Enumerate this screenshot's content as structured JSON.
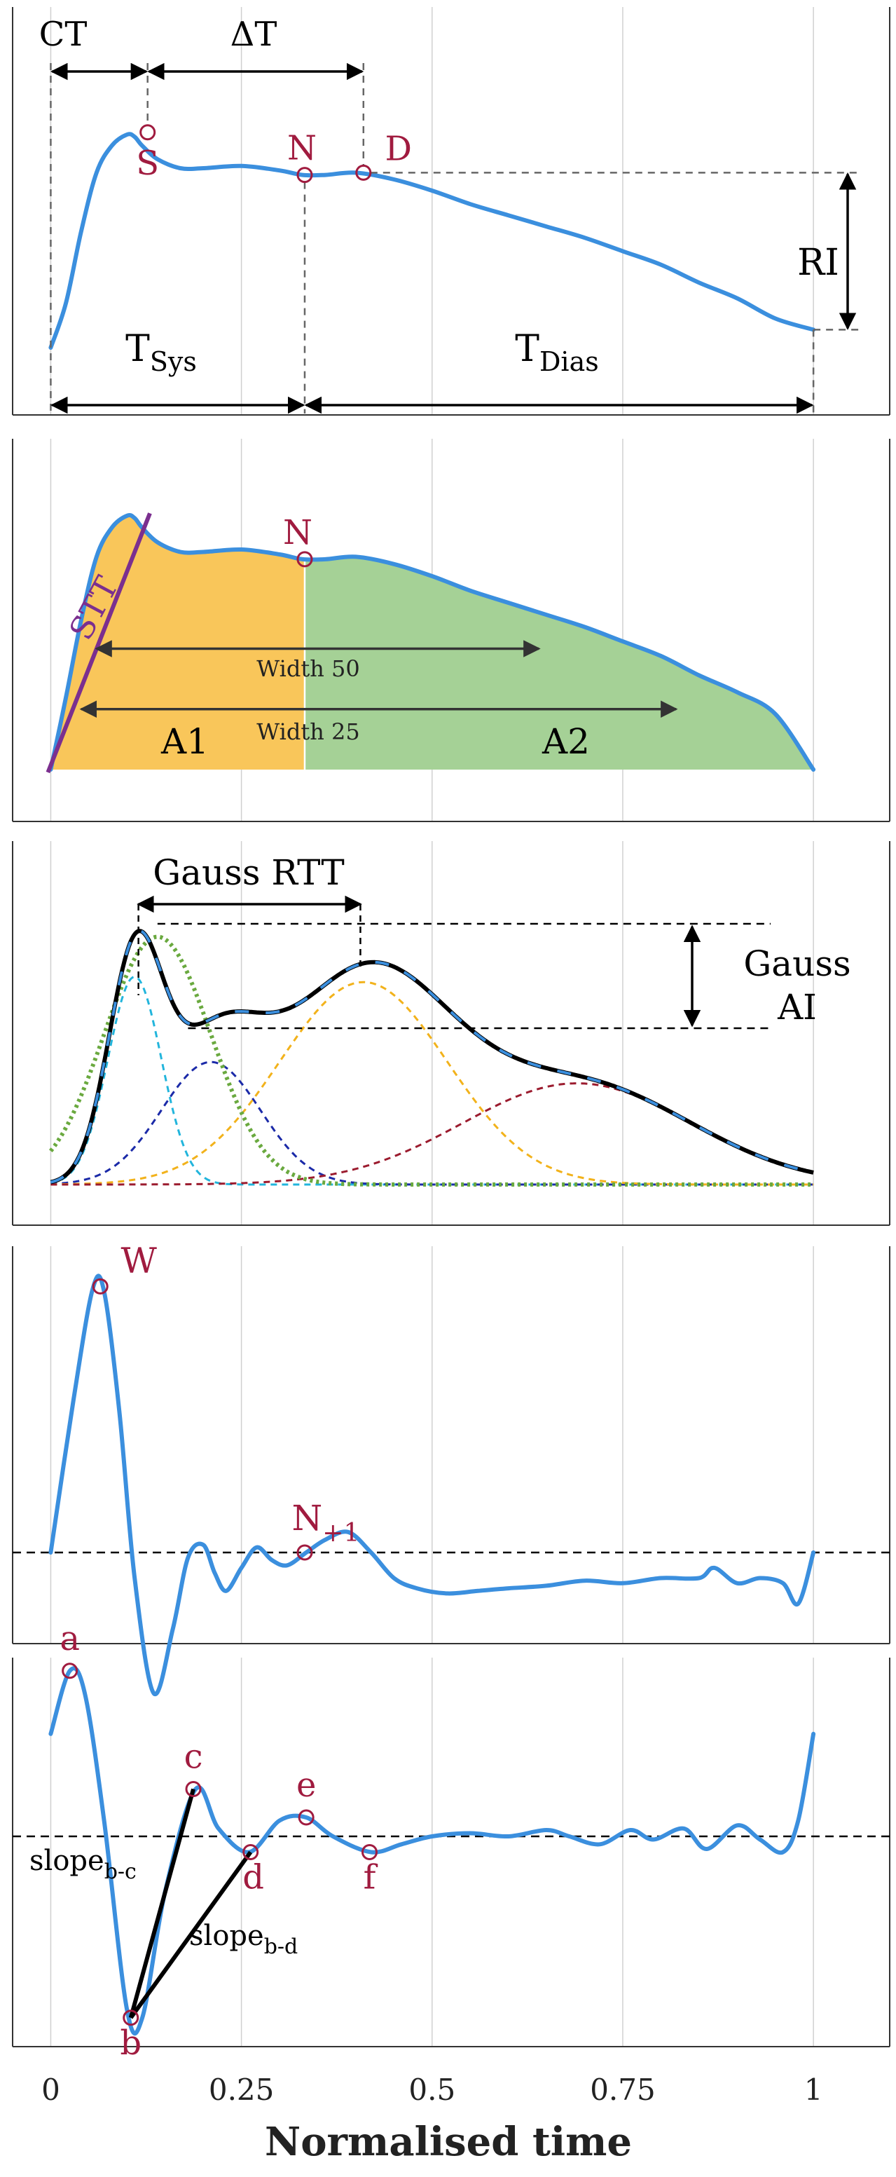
{
  "colors": {
    "signal": "#3b8fde",
    "marker": "#a01b3f",
    "guide": "#666666",
    "arrow": "#000000",
    "stt": "#7b2f8f",
    "area_systolic": "#f9c65a",
    "area_diastolic": "#a5d196",
    "gauss_sum": "#000000",
    "gauss_1": "#22b5dc",
    "gauss_2": "#1b2aa8",
    "gauss_3": "#f2b21b",
    "gauss_4": "#9b1b2e",
    "gauss_5": "#6aa93f",
    "grid": "#d0d0d0"
  },
  "x_axis": {
    "label": "Normalised time",
    "ticks": [
      "0",
      "0.25",
      "0.5",
      "0.75",
      "1"
    ],
    "tick_values": [
      0,
      0.25,
      0.5,
      0.75,
      1
    ],
    "range": [
      -0.05,
      1.1
    ],
    "grid": "vertical"
  },
  "chart_data": [
    {
      "type": "line",
      "panel": "pulse-wave-timing",
      "x": [
        0,
        0.02,
        0.04,
        0.06,
        0.08,
        0.1,
        0.11,
        0.12,
        0.14,
        0.17,
        0.2,
        0.25,
        0.3,
        0.33,
        0.36,
        0.4,
        0.45,
        0.5,
        0.55,
        0.6,
        0.65,
        0.7,
        0.75,
        0.8,
        0.85,
        0.9,
        0.95,
        1.0
      ],
      "y": [
        0.1,
        0.3,
        0.62,
        0.88,
        1.0,
        1.05,
        1.04,
        1.0,
        0.94,
        0.9,
        0.9,
        0.91,
        0.89,
        0.87,
        0.87,
        0.88,
        0.85,
        0.8,
        0.74,
        0.69,
        0.64,
        0.59,
        0.53,
        0.47,
        0.39,
        0.32,
        0.23,
        0.18
      ],
      "markers": [
        {
          "label": "S",
          "x": 0.127,
          "y": 1.06
        },
        {
          "label": "N",
          "x": 0.333,
          "y": 0.87
        },
        {
          "label": "D",
          "x": 0.41,
          "y": 0.88
        }
      ],
      "annotations": {
        "ct": "CT",
        "delta_t": "ΔT",
        "ri": "RI",
        "t": "T",
        "sys": "Sys",
        "dias": "Dias"
      }
    },
    {
      "type": "area",
      "panel": "pulse-wave-areas",
      "x": [
        0,
        0.02,
        0.04,
        0.06,
        0.08,
        0.1,
        0.11,
        0.12,
        0.14,
        0.17,
        0.2,
        0.25,
        0.3,
        0.33,
        0.36,
        0.4,
        0.45,
        0.5,
        0.55,
        0.6,
        0.65,
        0.7,
        0.75,
        0.8,
        0.85,
        0.9,
        0.95,
        1.0
      ],
      "y": [
        0.0,
        0.3,
        0.62,
        0.88,
        1.0,
        1.05,
        1.04,
        1.0,
        0.94,
        0.9,
        0.9,
        0.91,
        0.89,
        0.87,
        0.87,
        0.88,
        0.85,
        0.8,
        0.74,
        0.69,
        0.64,
        0.59,
        0.53,
        0.47,
        0.39,
        0.32,
        0.23,
        0.0
      ],
      "split_x": 0.333,
      "markers": [
        {
          "label": "N",
          "x": 0.333,
          "y": 0.87
        }
      ],
      "areas": [
        "A1",
        "A2"
      ],
      "stt": "STT",
      "widths": [
        {
          "label": "Width 50",
          "x0": 0.06,
          "x1": 0.64,
          "y": 0.5
        },
        {
          "label": "Width 25",
          "x0": 0.04,
          "x1": 0.82,
          "y": 0.25
        }
      ]
    },
    {
      "type": "line",
      "panel": "gaussian-decomposition",
      "x_range": [
        0,
        1.0
      ],
      "components": [
        {
          "color_key": "gauss_1",
          "mu": 0.11,
          "sigma": 0.035,
          "amp": 0.78
        },
        {
          "color_key": "gauss_2",
          "mu": 0.21,
          "sigma": 0.065,
          "amp": 0.46
        },
        {
          "color_key": "gauss_3",
          "mu": 0.41,
          "sigma": 0.11,
          "amp": 0.76
        },
        {
          "color_key": "gauss_4",
          "mu": 0.69,
          "sigma": 0.15,
          "amp": 0.38
        },
        {
          "color_key": "gauss_5",
          "mu": 0.14,
          "sigma": 0.07,
          "amp": 0.93
        }
      ],
      "labels": {
        "rtt": "Gauss RTT",
        "ai_1": "Gauss",
        "ai_2": "AI"
      }
    },
    {
      "type": "line",
      "panel": "first-derivative",
      "x": [
        0,
        0.03,
        0.055,
        0.07,
        0.09,
        0.11,
        0.135,
        0.16,
        0.18,
        0.2,
        0.215,
        0.23,
        0.25,
        0.27,
        0.29,
        0.31,
        0.335,
        0.36,
        0.39,
        0.42,
        0.45,
        0.48,
        0.52,
        0.56,
        0.6,
        0.65,
        0.7,
        0.75,
        0.8,
        0.85,
        0.87,
        0.9,
        0.93,
        0.96,
        0.98,
        1.0
      ],
      "y": [
        0,
        0.6,
        1.03,
        1.02,
        0.55,
        -0.1,
        -0.55,
        -0.3,
        -0.02,
        0.03,
        -0.08,
        -0.15,
        -0.06,
        0.02,
        -0.03,
        -0.05,
        0.0,
        0.05,
        0.08,
        0.0,
        -0.1,
        -0.14,
        -0.16,
        -0.15,
        -0.14,
        -0.13,
        -0.11,
        -0.12,
        -0.1,
        -0.1,
        -0.06,
        -0.12,
        -0.1,
        -0.12,
        -0.2,
        0.0
      ],
      "zero_line": true,
      "markers": [
        {
          "label": "W",
          "x": 0.065,
          "y": 1.04
        },
        {
          "label": "N",
          "x": 0.333,
          "y": 0.0
        }
      ],
      "subscript": "+1"
    },
    {
      "type": "line",
      "panel": "second-derivative",
      "x": [
        0,
        0.025,
        0.045,
        0.07,
        0.1,
        0.12,
        0.15,
        0.19,
        0.22,
        0.26,
        0.3,
        0.335,
        0.37,
        0.42,
        0.46,
        0.5,
        0.55,
        0.6,
        0.65,
        0.68,
        0.72,
        0.76,
        0.79,
        0.83,
        0.86,
        0.9,
        0.93,
        0.96,
        0.98,
        1.0
      ],
      "y": [
        0.65,
        1.05,
        0.9,
        0.1,
        -1.1,
        -1.15,
        -0.35,
        0.3,
        0.05,
        -0.1,
        0.1,
        0.12,
        0.0,
        -0.1,
        -0.05,
        0.0,
        0.02,
        0.0,
        0.04,
        0.0,
        -0.05,
        0.04,
        -0.02,
        0.05,
        -0.08,
        0.07,
        -0.02,
        -0.1,
        0.1,
        0.65
      ],
      "zero_line": true,
      "markers": [
        {
          "label": "a",
          "x": 0.025,
          "y": 1.05
        },
        {
          "label": "b",
          "x": 0.105,
          "y": -1.15
        },
        {
          "label": "c",
          "x": 0.187,
          "y": 0.3
        },
        {
          "label": "d",
          "x": 0.262,
          "y": -0.1
        },
        {
          "label": "e",
          "x": 0.335,
          "y": 0.12
        },
        {
          "label": "f",
          "x": 0.418,
          "y": -0.1
        }
      ],
      "slopes": {
        "base": "slope",
        "bc": "b-c",
        "bd": "b-d"
      }
    }
  ]
}
